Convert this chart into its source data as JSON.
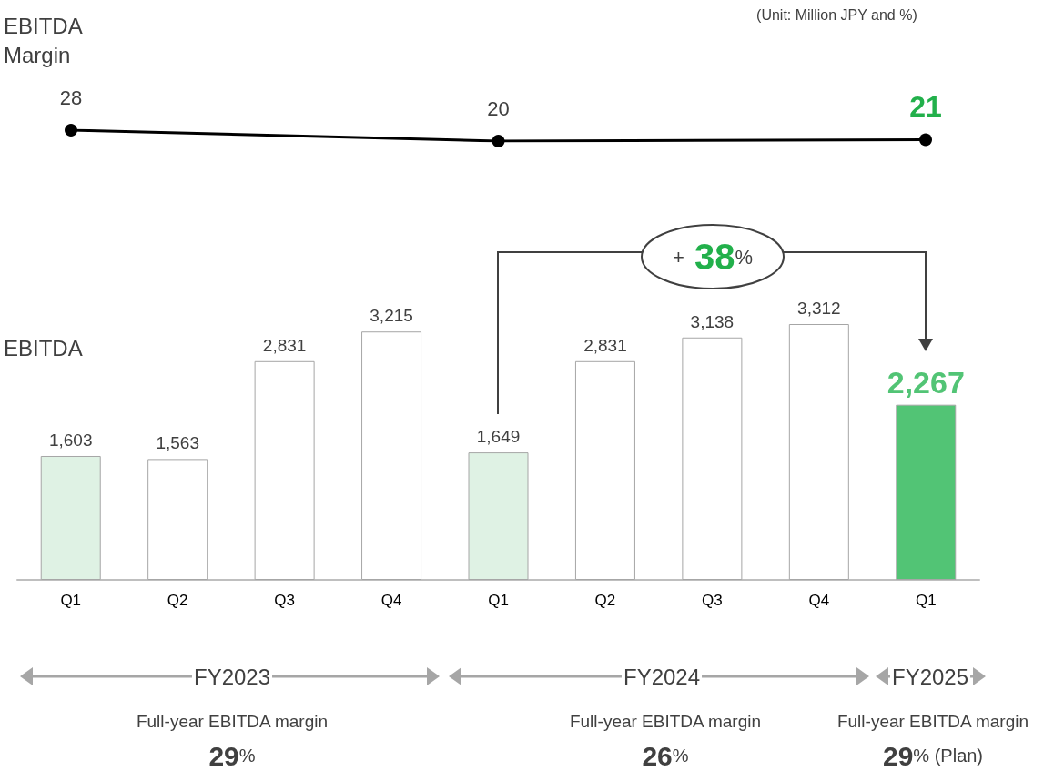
{
  "chart_data": [
    {
      "type": "line",
      "subtitle": "(Unit: Million JPY and %)",
      "categories": [
        null,
        null,
        null
      ],
      "series": [
        {
          "name": "EBITDA Margin",
          "color": "#000000",
          "values": [
            28,
            20,
            21
          ]
        }
      ],
      "data_labels": true,
      "grid": false,
      "legend": false,
      "marker": "circle",
      "line_style": "solid"
    },
    {
      "type": "bar",
      "categories": [
        "Q1",
        "Q2",
        "Q3",
        "Q4",
        "Q1",
        "Q2",
        "Q3",
        "Q4",
        "Q1"
      ],
      "series": [
        {
          "name": "EBITDA",
          "type": "bar",
          "colors": [
            "#dff2e4",
            "#ffffff",
            "#ffffff",
            "#ffffff",
            "#dff2e4",
            "#ffffff",
            "#ffffff",
            "#ffffff",
            "#52c475"
          ],
          "values": [
            1603,
            1563,
            2831,
            3215,
            1649,
            2831,
            3138,
            3312,
            2267
          ],
          "value_labels": [
            "1,603",
            "1,563",
            "2,831",
            "3,215",
            "1,649",
            "2,831",
            "3,138",
            "3,312",
            "2,267"
          ]
        }
      ],
      "grid": false,
      "legend": false,
      "annotations": [
        "+ 38%",
        "FY2023",
        "FY2024",
        "FY2025",
        "Full-year EBITDA margin",
        "29%",
        "Full-year EBITDA margin",
        "26%",
        "Full-year EBITDA margin",
        "29% (Plan)"
      ]
    }
  ]
}
